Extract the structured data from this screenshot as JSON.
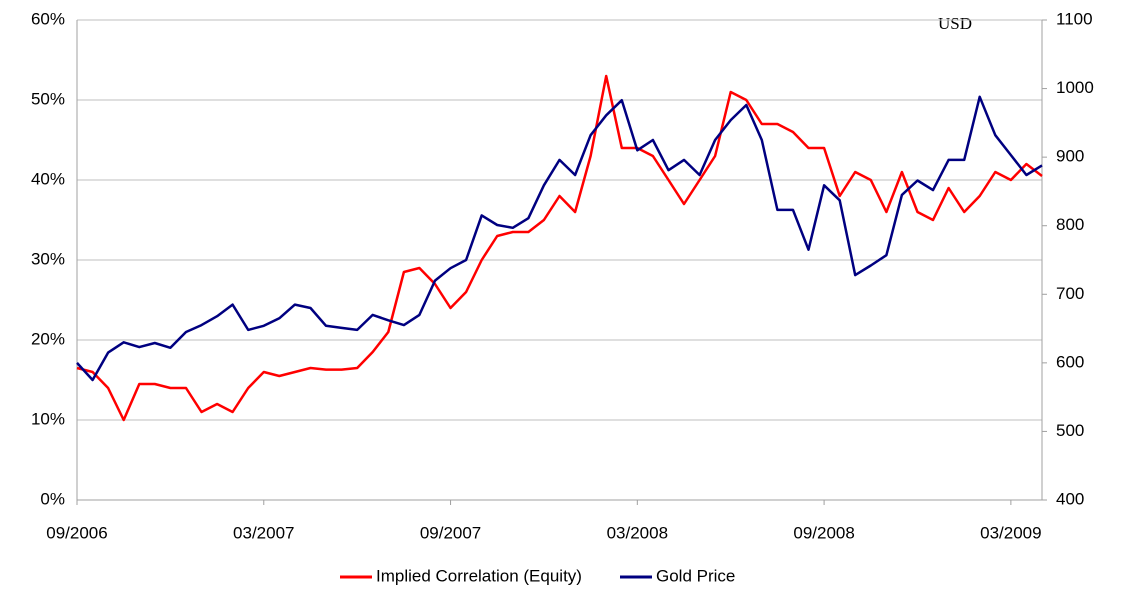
{
  "chart_data": {
    "type": "line",
    "annotations": [
      "USD"
    ],
    "categories": [
      "09/2006",
      null,
      null,
      null,
      null,
      null,
      null,
      null,
      null,
      null,
      null,
      null,
      "03/2007",
      null,
      null,
      null,
      null,
      null,
      null,
      null,
      null,
      null,
      null,
      null,
      "09/2007",
      null,
      null,
      null,
      null,
      null,
      null,
      null,
      null,
      null,
      null,
      null,
      "03/2008",
      null,
      null,
      null,
      null,
      null,
      null,
      null,
      null,
      null,
      null,
      null,
      "09/2008",
      null,
      null,
      null,
      null,
      null,
      null,
      null,
      null,
      null,
      null,
      null,
      "03/2009",
      null,
      null
    ],
    "series": [
      {
        "name": "Implied Correlation (Equity)",
        "color": "#ff0000",
        "axis": "y",
        "values": [
          16.5,
          16,
          14,
          10,
          14.5,
          14.5,
          14,
          14,
          11,
          12,
          11,
          14,
          16,
          15.5,
          16,
          16.5,
          16.3,
          16.3,
          16.5,
          18.5,
          21,
          28.5,
          29,
          27,
          24,
          26,
          30,
          33,
          33.5,
          33.5,
          35,
          38,
          36,
          43,
          53,
          44,
          44,
          43,
          40,
          37,
          40,
          43,
          51,
          50,
          47,
          47,
          46,
          44,
          44,
          38,
          41,
          40,
          36,
          41,
          36,
          35,
          39,
          36,
          38,
          41,
          40,
          42,
          40.5
        ]
      },
      {
        "name": "Gold Price",
        "color": "#000080",
        "axis": "y2",
        "values": [
          600,
          575,
          615,
          630,
          623,
          629,
          622,
          645,
          655,
          668,
          685,
          648,
          654,
          665,
          685,
          680,
          654,
          651,
          648,
          670,
          662,
          655,
          670,
          720,
          738,
          750,
          815,
          801,
          797,
          811,
          859,
          896,
          874,
          932,
          961,
          983,
          910,
          925,
          881,
          896,
          874,
          925,
          954,
          976,
          925,
          823,
          823,
          765,
          859,
          837,
          728,
          742,
          757,
          845,
          866,
          852,
          896,
          896,
          988,
          932,
          903,
          874,
          888
        ]
      }
    ],
    "ylim": [
      0,
      60
    ],
    "yticks": [
      {
        "value": 0,
        "label": "0%"
      },
      {
        "value": 10,
        "label": "10%"
      },
      {
        "value": 20,
        "label": "20%"
      },
      {
        "value": 30,
        "label": "30%"
      },
      {
        "value": 40,
        "label": "40%"
      },
      {
        "value": 50,
        "label": "50%"
      },
      {
        "value": 60,
        "label": "60%"
      }
    ],
    "y2lim": [
      400,
      1100
    ],
    "y2ticks": [
      400,
      500,
      600,
      700,
      800,
      900,
      1000,
      1100
    ],
    "grid": true,
    "legend": "bottom"
  }
}
